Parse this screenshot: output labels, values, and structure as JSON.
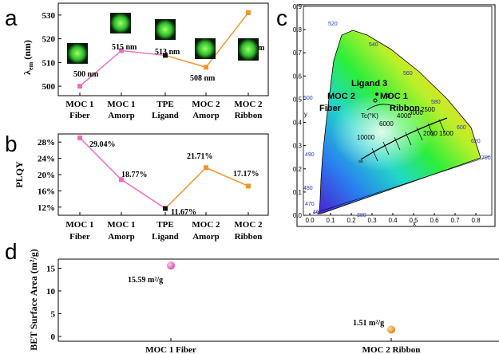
{
  "colors": {
    "fiber_line": "#f06cc0",
    "ribbon_line": "#f0952c",
    "tpe_marker": "#111111",
    "photo_green": "#3ddc3a"
  },
  "panels": {
    "a": "a",
    "b": "b",
    "c": "c",
    "d": "d"
  },
  "categories": [
    [
      "MOC 1",
      "Fiber"
    ],
    [
      "MOC 1",
      "Amorp"
    ],
    [
      "TPE",
      "Ligand"
    ],
    [
      "MOC 2",
      "Amorp"
    ],
    [
      "MOC 2",
      "Ribbon"
    ]
  ],
  "cie": {
    "labels": [
      "Ligand 3",
      "MOC 2",
      "MOC 1",
      "Fiber",
      "Ribbon",
      "Tc(°K)"
    ],
    "x_ticks": [
      "0.0",
      "0.1",
      "0.2",
      "0.3",
      "0.4",
      "0.5",
      "0.6",
      "0.7",
      "0.8"
    ],
    "y_ticks": [
      "0.0",
      "0.1",
      "0.2",
      "0.3",
      "0.4",
      "0.5",
      "0.6",
      "0.7",
      "0.8",
      "0.9"
    ],
    "x_axis": "x",
    "y_axis": "y",
    "wavelengths": [
      "380",
      "460",
      "470",
      "480",
      "490",
      "500",
      "520",
      "540",
      "560",
      "580",
      "600",
      "620",
      "700"
    ],
    "temps": [
      "10000",
      "6000",
      "4000",
      "3000",
      "2500",
      "2000",
      "1500",
      "∞"
    ]
  },
  "chart_data": [
    {
      "type": "line",
      "panel": "a",
      "ylabel": "λem (nm)",
      "ylim": [
        496,
        535
      ],
      "yticks": [
        500,
        510,
        520,
        530
      ],
      "categories": [
        "MOC 1 Fiber",
        "MOC 1 Amorp",
        "TPE Ligand",
        "MOC 2 Amorp",
        "MOC 2 Ribbon"
      ],
      "series": [
        {
          "values": [
            500,
            515,
            513,
            null,
            null
          ]
        },
        {
          "values": [
            null,
            null,
            513,
            508,
            531
          ]
        }
      ],
      "data_labels": [
        "500 nm",
        "515 nm",
        "513 nm",
        "508 nm",
        "531 nm"
      ]
    },
    {
      "type": "line",
      "panel": "b",
      "ylabel": "PLQY",
      "ylim": [
        10,
        30
      ],
      "yticks": [
        "12%",
        "16%",
        "20%",
        "24%",
        "28%"
      ],
      "ytick_values": [
        12,
        16,
        20,
        24,
        28
      ],
      "categories": [
        "MOC 1 Fiber",
        "MOC 1 Amorp",
        "TPE Ligand",
        "MOC 2 Amorp",
        "MOC 2 Ribbon"
      ],
      "series": [
        {
          "values": [
            29.04,
            18.77,
            11.67,
            null,
            null
          ]
        },
        {
          "values": [
            null,
            null,
            11.67,
            21.71,
            17.17
          ]
        }
      ],
      "data_labels": [
        "29.04%",
        "18.77%",
        "11.67%",
        "21.71%",
        "17.17%"
      ]
    },
    {
      "type": "scatter",
      "panel": "d",
      "ylabel": "BET Surface Area (m²/g)",
      "ylim": [
        0,
        17
      ],
      "yticks": [
        0,
        5,
        10,
        15
      ],
      "categories": [
        "MOC 1 Fiber",
        "MOC 2 Ribbon"
      ],
      "values": [
        15.59,
        1.51
      ],
      "data_labels": [
        "15.59 m²/g",
        "1.51 m²/g"
      ]
    }
  ]
}
